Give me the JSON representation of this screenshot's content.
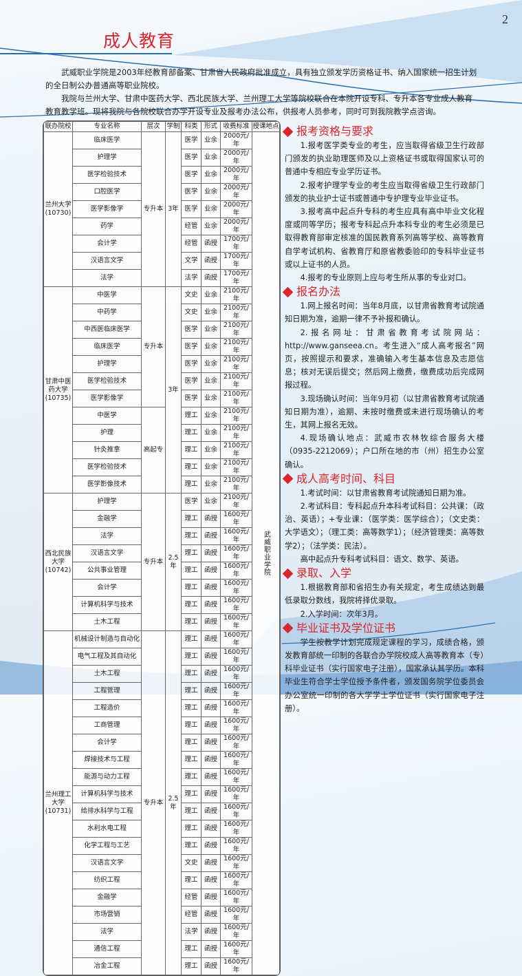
{
  "page_number": "2",
  "title": "成人教育",
  "intro": [
    "武威职业学院是2003年经教育部备案、甘肃省人民政府批准成立，具有独立颁发学历资格证书、纳入国家统一招生计划的全日制公办普通高等职业院校。",
    "我院与兰州大学、甘肃中医药大学、西北民族大学、兰州理工大学等院校联合在本院开设专科、专升本各专业成人教育教育教学班。现将我院与各院校联合办学开设专业及报考办法公布，供报考人员参考，同时可到我院教学点咨询。"
  ],
  "table": {
    "headers": [
      "联办院校",
      "专业名称",
      "层次",
      "学制",
      "科类",
      "形式",
      "收费标准",
      "授课地点"
    ],
    "location": "武威职业学院",
    "groups": [
      {
        "school": "兰州大学\n(10730)",
        "duration": "3年",
        "levels": [
          {
            "level": "专升本",
            "count": 9
          }
        ],
        "rows": [
          [
            "临床医学",
            "医学",
            "业余",
            "2000元/年"
          ],
          [
            "护理学",
            "医学",
            "业余",
            "2000元/年"
          ],
          [
            "医学检验技术",
            "医学",
            "业余",
            "2000元/年"
          ],
          [
            "口腔医学",
            "医学",
            "业余",
            "2000元/年"
          ],
          [
            "医学影像学",
            "医学",
            "业余",
            "2000元/年"
          ],
          [
            "药学",
            "经管",
            "业余",
            "2000元/年"
          ],
          [
            "会计学",
            "经管",
            "函授",
            "1700元/年"
          ],
          [
            "汉语言文学",
            "文学",
            "函授",
            "1700元/年"
          ],
          [
            "法学",
            "法学",
            "函授",
            "1700元/年"
          ]
        ]
      },
      {
        "school": "甘肃中医\n药大学\n(10735)",
        "duration": "3年",
        "levels": [
          {
            "level": "专升本",
            "count": 7
          },
          {
            "level": "高起专",
            "count": 5
          }
        ],
        "rows": [
          [
            "中医学",
            "文史",
            "业余",
            "2100元/年"
          ],
          [
            "中药学",
            "文史",
            "业余",
            "2100元/年"
          ],
          [
            "中西医临床医学",
            "医学",
            "业余",
            "2100元/年"
          ],
          [
            "临床医学",
            "医学",
            "业余",
            "2100元/年"
          ],
          [
            "护理学",
            "医学",
            "业余",
            "2100元/年"
          ],
          [
            "医学检验技术",
            "医学",
            "业余",
            "2100元/年"
          ],
          [
            "医学影像学",
            "医学",
            "业余",
            "2100元/年"
          ],
          [
            "中医学",
            "理工",
            "业余",
            "2100元/年"
          ],
          [
            "护理",
            "理工",
            "业余",
            "2100元/年"
          ],
          [
            "针灸推拿",
            "理工",
            "业余",
            "2100元/年"
          ],
          [
            "医学检验技术",
            "理工",
            "业余",
            "2100元/年"
          ],
          [
            "医学影像技术",
            "理工",
            "业余",
            "2100元/年"
          ]
        ]
      },
      {
        "school": "西北民族\n大学\n(10742)",
        "duration": "2.5年",
        "levels": [
          {
            "level": "专升本",
            "count": 8
          }
        ],
        "rows": [
          [
            "护理学",
            "医学",
            "业余",
            "2100元/年"
          ],
          [
            "金融学",
            "理工",
            "函授",
            "1600元/年"
          ],
          [
            "法学",
            "理工",
            "函授",
            "1600元/年"
          ],
          [
            "汉语言文学",
            "理工",
            "函授",
            "1600元/年"
          ],
          [
            "公共事业管理",
            "理工",
            "函授",
            "1600元/年"
          ],
          [
            "会计学",
            "理工",
            "函授",
            "1600元/年"
          ],
          [
            "计算机科学与技术",
            "理工",
            "函授",
            "1600元/年"
          ],
          [
            "土木工程",
            "理工",
            "函授",
            "1600元/年"
          ]
        ]
      },
      {
        "school": "兰州理工\n大学\n(10731)",
        "duration": "2.5年",
        "levels": [
          {
            "level": "专升本",
            "count": 20
          }
        ],
        "rows": [
          [
            "机械设计制造与自动化",
            "理工",
            "函授",
            "1600元/年"
          ],
          [
            "电气工程及其自动化",
            "理工",
            "函授",
            "1600元/年"
          ],
          [
            "土木工程",
            "理工",
            "函授",
            "1600元/年"
          ],
          [
            "工程管理",
            "理工",
            "函授",
            "1600元/年"
          ],
          [
            "工程造价",
            "理工",
            "函授",
            "1600元/年"
          ],
          [
            "工商管理",
            "理工",
            "函授",
            "1600元/年"
          ],
          [
            "会计学",
            "理工",
            "函授",
            "1600元/年"
          ],
          [
            "焊接技术与工程",
            "理工",
            "函授",
            "1600元/年"
          ],
          [
            "能源与动力工程",
            "理工",
            "函授",
            "1600元/年"
          ],
          [
            "计算机科学与技术",
            "理工",
            "函授",
            "1600元/年"
          ],
          [
            "给排水科学与工程",
            "理工",
            "函授",
            "1600元/年"
          ],
          [
            "水利水电工程",
            "理工",
            "函授",
            "1600元/年"
          ],
          [
            "化学工程与工艺",
            "理工",
            "函授",
            "1600元/年"
          ],
          [
            "汉语言文学",
            "文史",
            "函授",
            "1600元/年"
          ],
          [
            "纺织工程",
            "理工",
            "函授",
            "1600元/年"
          ],
          [
            "金融学",
            "经管",
            "函授",
            "1600元/年"
          ],
          [
            "市场营销",
            "经管",
            "函授",
            "1600元/年"
          ],
          [
            "法学",
            "法学",
            "函授",
            "1600元/年"
          ],
          [
            "通信工程",
            "理工",
            "函授",
            "1600元/年"
          ],
          [
            "冶金工程",
            "理工",
            "函授",
            "1600元/年"
          ]
        ]
      }
    ]
  },
  "sections": [
    {
      "heading": "报考资格与要求",
      "paragraphs": [
        "1.报考医学类专业的考生，应当取得省级卫生行政部门颁发的执业助理医师及以上资格证书或取得国家认可的普通中专相应专业学历证书。",
        "2.报考护理学专业的考生应当取得省级卫生行政部门颁发的执业护士证书或普通中专护理专业毕业证书。",
        "3.报考高中起点升专科的考生应具有高中毕业文化程度或同等学历；报考专科起点升本科专业的考生必须是已取得教育部审定核准的国民教育系列高等学校、高等教育自学考试机构、省教育厅和原省教委验印的专科毕业证书或以上证书的人员。",
        "4.报考的专业原则上应与考生所从事的专业对口。"
      ]
    },
    {
      "heading": "报名办法",
      "paragraphs": [
        "1.网上报名时间：当年8月底，以甘肃省教育考试院通知日期为准，逾期一律不予补报和确认。",
        "2.报名网址：甘肃省教育考试院网站：http://www.ganseea.cn。考生进入“成人高考报名”网页，按照提示和要求，准确输入考生基本信息及志愿信息；核对无误后提交；然后网上缴费，缴费成功后完成网报过程。",
        "3.现场确认时间：当年9月初（以甘肃省教育考试院通知日期为准），逾期、未按时缴费或未进行现场确认的考生，其网上报名无效。",
        "4.现场确认地点：武威市农林牧综合服务大楼（0935-2212069）；户口所在地的市（州）招生办公室确认。"
      ]
    },
    {
      "heading": "成人高考时间、科目",
      "paragraphs": [
        "1.考试时间：以甘肃省教育考试院通知日期为准。",
        "2.考试科目：专科起点升本科考试科目：公共课：（政治、英语）；+专业课：（医学类：医学综合）；（文史类：大学语文）；（理工类：高等数学1）；（经济管理类：高等数学2）；（法学类：民法）。",
        "高中起点升专科考试科目：语文、数学、英语。"
      ]
    },
    {
      "heading": "录取、入学",
      "paragraphs": [
        "1.根据教育部和省招生办有关规定，考生成绩达到最低录取分数线，我院将择优录取。",
        "2.入学时间：次年3月。"
      ]
    },
    {
      "heading": "毕业证书及学位证书",
      "paragraphs": [
        "学生按教学计划完成规定课程的学习，成绩合格，颁发教育部统一印制的各联合办学院校成人高等教育本（专）科毕业证书（实行国家电子注册），国家承认其学历。本科毕业生符合学士学位授予条件者，颁发国务院学位委员会办公室统一印制的各大学学士学位证书（实行国家电子注册）。"
      ]
    }
  ],
  "colors": {
    "accent_red": "#d9252b",
    "line_blue": "#2a6fb0"
  }
}
